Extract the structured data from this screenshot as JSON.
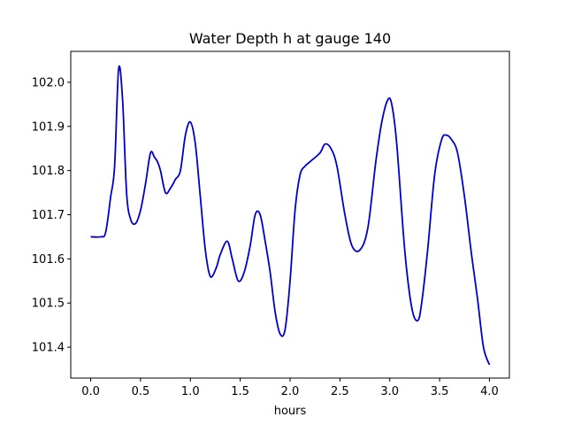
{
  "chart_data": {
    "type": "line",
    "title": "Water Depth h at gauge 140",
    "xlabel": "hours",
    "ylabel": "",
    "xlim": [
      -0.2,
      4.2
    ],
    "ylim": [
      101.33,
      102.07
    ],
    "xticks": [
      0.0,
      0.5,
      1.0,
      1.5,
      2.0,
      2.5,
      3.0,
      3.5,
      4.0
    ],
    "xtick_labels": [
      "0.0",
      "0.5",
      "1.0",
      "1.5",
      "2.0",
      "2.5",
      "3.0",
      "3.5",
      "4.0"
    ],
    "yticks": [
      101.4,
      101.5,
      101.6,
      101.7,
      101.8,
      101.9,
      102.0
    ],
    "ytick_labels": [
      "101.4",
      "101.5",
      "101.6",
      "101.7",
      "101.8",
      "101.9",
      "102.0"
    ],
    "grid": false,
    "series": [
      {
        "color": "#0000cc",
        "x": [
          0.0,
          0.1,
          0.15,
          0.2,
          0.24,
          0.28,
          0.32,
          0.36,
          0.4,
          0.45,
          0.5,
          0.55,
          0.6,
          0.64,
          0.67,
          0.7,
          0.75,
          0.8,
          0.85,
          0.9,
          0.95,
          1.0,
          1.05,
          1.1,
          1.15,
          1.2,
          1.26,
          1.3,
          1.37,
          1.42,
          1.48,
          1.54,
          1.6,
          1.65,
          1.7,
          1.75,
          1.8,
          1.85,
          1.9,
          1.95,
          2.0,
          2.05,
          2.1,
          2.15,
          2.2,
          2.3,
          2.35,
          2.41,
          2.47,
          2.55,
          2.62,
          2.7,
          2.78,
          2.86,
          2.92,
          2.98,
          3.02,
          3.07,
          3.15,
          3.22,
          3.28,
          3.32,
          3.38,
          3.45,
          3.52,
          3.57,
          3.62,
          3.68,
          3.75,
          3.82,
          3.88,
          3.94,
          4.0
        ],
        "y": [
          101.65,
          101.65,
          101.66,
          101.74,
          101.81,
          102.03,
          101.96,
          101.75,
          101.69,
          101.68,
          101.71,
          101.77,
          101.84,
          101.83,
          101.82,
          101.8,
          101.75,
          101.76,
          101.78,
          101.8,
          101.88,
          101.91,
          101.86,
          101.74,
          101.62,
          101.56,
          101.58,
          101.61,
          101.64,
          101.6,
          101.55,
          101.57,
          101.63,
          101.7,
          101.7,
          101.64,
          101.57,
          101.48,
          101.43,
          101.44,
          101.55,
          101.71,
          101.79,
          101.81,
          101.82,
          101.84,
          101.86,
          101.85,
          101.81,
          101.7,
          101.63,
          101.62,
          101.67,
          101.82,
          101.91,
          101.96,
          101.95,
          101.86,
          101.62,
          101.49,
          101.46,
          101.5,
          101.62,
          101.79,
          101.87,
          101.88,
          101.87,
          101.84,
          101.74,
          101.61,
          101.51,
          101.4,
          101.36
        ]
      }
    ]
  }
}
